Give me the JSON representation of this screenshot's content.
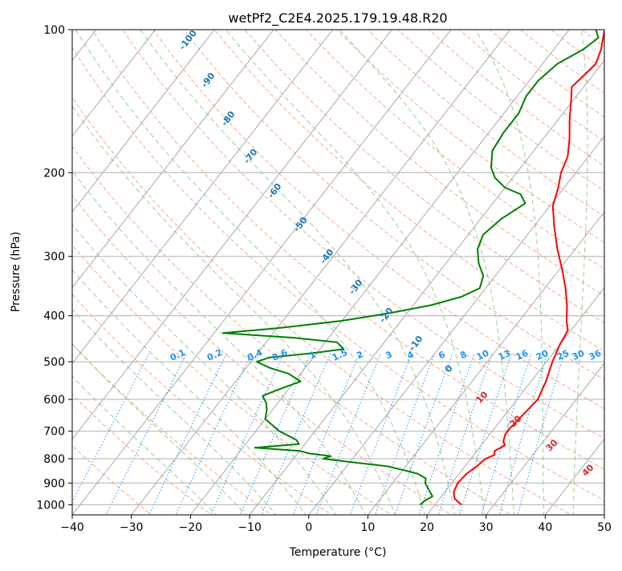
{
  "chart_data": {
    "type": "line",
    "title": "wetPf2_C2E4.2025.179.19.48.R20",
    "xlabel": "Temperature (°C)",
    "ylabel": "Pressure (hPa)",
    "xlim": [
      -40,
      50
    ],
    "ylim": [
      1050,
      100
    ],
    "y_scale": "log",
    "skew": "skew-T log-P diagram",
    "grid": true,
    "x_ticks": [
      -40,
      -30,
      -20,
      -10,
      0,
      10,
      20,
      30,
      40,
      50
    ],
    "y_ticks": [
      100,
      200,
      300,
      400,
      500,
      600,
      700,
      800,
      900,
      1000
    ],
    "series": [
      {
        "color": "#ff0000",
        "points": [
          {
            "p": 1000,
            "t": 24.5
          },
          {
            "p": 970,
            "t": 22.5
          },
          {
            "p": 940,
            "t": 21.5
          },
          {
            "p": 900,
            "t": 21.0
          },
          {
            "p": 860,
            "t": 21.3
          },
          {
            "p": 830,
            "t": 22.0
          },
          {
            "p": 800,
            "t": 22.5
          },
          {
            "p": 785,
            "t": 23.5
          },
          {
            "p": 770,
            "t": 23.0
          },
          {
            "p": 750,
            "t": 24.0
          },
          {
            "p": 735,
            "t": 23.2
          },
          {
            "p": 710,
            "t": 22.6
          },
          {
            "p": 690,
            "t": 22.6
          },
          {
            "p": 650,
            "t": 23.0
          },
          {
            "p": 600,
            "t": 23.5
          },
          {
            "p": 550,
            "t": 22.5
          },
          {
            "p": 500,
            "t": 21.0
          },
          {
            "p": 460,
            "t": 20.0
          },
          {
            "p": 430,
            "t": 19.5
          },
          {
            "p": 410,
            "t": 18.0
          },
          {
            "p": 380,
            "t": 16.0
          },
          {
            "p": 350,
            "t": 13.5
          },
          {
            "p": 320,
            "t": 10.5
          },
          {
            "p": 290,
            "t": 7.0
          },
          {
            "p": 260,
            "t": 3.5
          },
          {
            "p": 235,
            "t": 0.5
          },
          {
            "p": 215,
            "t": -1.0
          },
          {
            "p": 200,
            "t": -2.5
          },
          {
            "p": 185,
            "t": -3.5
          },
          {
            "p": 170,
            "t": -5.5
          },
          {
            "p": 155,
            "t": -8.0
          },
          {
            "p": 140,
            "t": -10.5
          },
          {
            "p": 132,
            "t": -12.0
          },
          {
            "p": 125,
            "t": -11.5
          },
          {
            "p": 118,
            "t": -11.0
          },
          {
            "p": 110,
            "t": -12.0
          },
          {
            "p": 105,
            "t": -13.0
          },
          {
            "p": 100,
            "t": -14.0
          }
        ]
      },
      {
        "color": "#008000",
        "points": [
          {
            "p": 1000,
            "t": 17.5
          },
          {
            "p": 980,
            "t": 17.8
          },
          {
            "p": 960,
            "t": 18.5
          },
          {
            "p": 930,
            "t": 17.0
          },
          {
            "p": 900,
            "t": 15.5
          },
          {
            "p": 880,
            "t": 15.0
          },
          {
            "p": 860,
            "t": 13.0
          },
          {
            "p": 830,
            "t": 7.0
          },
          {
            "p": 810,
            "t": -1.0
          },
          {
            "p": 800,
            "t": -5.0
          },
          {
            "p": 790,
            "t": -4.0
          },
          {
            "p": 780,
            "t": -8.0
          },
          {
            "p": 770,
            "t": -10.0
          },
          {
            "p": 758,
            "t": -18.0
          },
          {
            "p": 745,
            "t": -11.0
          },
          {
            "p": 730,
            "t": -12.0
          },
          {
            "p": 700,
            "t": -16.0
          },
          {
            "p": 660,
            "t": -20.0
          },
          {
            "p": 630,
            "t": -21.0
          },
          {
            "p": 610,
            "t": -22.0
          },
          {
            "p": 590,
            "t": -23.5
          },
          {
            "p": 575,
            "t": -22.0
          },
          {
            "p": 550,
            "t": -19.0
          },
          {
            "p": 530,
            "t": -22.0
          },
          {
            "p": 515,
            "t": -26.0
          },
          {
            "p": 500,
            "t": -29.0
          },
          {
            "p": 490,
            "t": -27.5
          },
          {
            "p": 480,
            "t": -21.0
          },
          {
            "p": 470,
            "t": -16.0
          },
          {
            "p": 455,
            "t": -18.0
          },
          {
            "p": 445,
            "t": -26.0
          },
          {
            "p": 435,
            "t": -38.5
          },
          {
            "p": 425,
            "t": -30.0
          },
          {
            "p": 410,
            "t": -20.0
          },
          {
            "p": 395,
            "t": -13.0
          },
          {
            "p": 380,
            "t": -7.0
          },
          {
            "p": 365,
            "t": -3.0
          },
          {
            "p": 350,
            "t": -1.0
          },
          {
            "p": 330,
            "t": -2.0
          },
          {
            "p": 310,
            "t": -4.5
          },
          {
            "p": 290,
            "t": -6.5
          },
          {
            "p": 270,
            "t": -7.5
          },
          {
            "p": 250,
            "t": -6.5
          },
          {
            "p": 232,
            "t": -4.5
          },
          {
            "p": 222,
            "t": -6.5
          },
          {
            "p": 215,
            "t": -10.0
          },
          {
            "p": 205,
            "t": -13.0
          },
          {
            "p": 195,
            "t": -15.0
          },
          {
            "p": 180,
            "t": -17.0
          },
          {
            "p": 165,
            "t": -17.5
          },
          {
            "p": 150,
            "t": -17.5
          },
          {
            "p": 138,
            "t": -18.5
          },
          {
            "p": 128,
            "t": -18.5
          },
          {
            "p": 118,
            "t": -17.5
          },
          {
            "p": 110,
            "t": -15.0
          },
          {
            "p": 104,
            "t": -14.0
          },
          {
            "p": 100,
            "t": -15.5
          }
        ]
      }
    ],
    "dry_adiabat_labels": [
      -100,
      -90,
      -80,
      -70,
      -60,
      -50,
      -40,
      -30,
      -20,
      -10,
      0
    ],
    "mixing_ratio_labels": [
      "0.1",
      "0.2",
      "0.4",
      "0.6",
      "1",
      "1.5",
      "2",
      "3",
      "4",
      "6",
      "8",
      "10",
      "13",
      "16",
      "20",
      "25",
      "30",
      "36"
    ],
    "moist_adiabat_labels": [
      10,
      20,
      30,
      40
    ],
    "colors": {
      "temperature": "#ff0000",
      "dewpoint": "#008000",
      "dry_adiabat": "#f7a98b",
      "moist_adiabat": "#9acd92",
      "mixing_ratio": "#1e90ff",
      "isotherm": "#a0a0a0",
      "adiabat_label": "#1f77b4",
      "moist_label": "#d62728"
    }
  }
}
